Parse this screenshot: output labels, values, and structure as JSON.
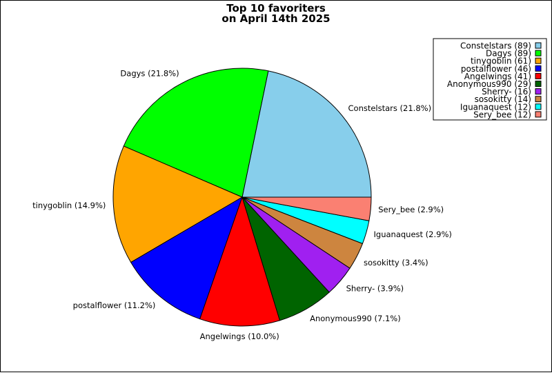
{
  "chart_data": {
    "type": "pie",
    "title": [
      "Top 10 favoriters",
      "on April 14th 2025"
    ],
    "slices": [
      {
        "name": "Constelstars",
        "count": 89,
        "percent": 21.8,
        "color": "#87ceeb",
        "label": "Constelstars (21.8%)",
        "legend": "Constelstars (89)"
      },
      {
        "name": "Dagys",
        "count": 89,
        "percent": 21.8,
        "color": "#00ff00",
        "label": "Dagys (21.8%)",
        "legend": "Dagys (89)"
      },
      {
        "name": "tinygoblin",
        "count": 61,
        "percent": 14.9,
        "color": "#ffa500",
        "label": "tinygoblin (14.9%)",
        "legend": "tinygoblin (61)"
      },
      {
        "name": "postalflower",
        "count": 46,
        "percent": 11.2,
        "color": "#0000ff",
        "label": "postalflower (11.2%)",
        "legend": "postalflower (46)"
      },
      {
        "name": "Angelwings",
        "count": 41,
        "percent": 10.0,
        "color": "#ff0000",
        "label": "Angelwings (10.0%)",
        "legend": "Angelwings (41)"
      },
      {
        "name": "Anonymous990",
        "count": 29,
        "percent": 7.1,
        "color": "#006400",
        "label": "Anonymous990 (7.1%)",
        "legend": "Anonymous990 (29)"
      },
      {
        "name": "Sherry-",
        "count": 16,
        "percent": 3.9,
        "color": "#a020f0",
        "label": "Sherry- (3.9%)",
        "legend": "Sherry- (16)"
      },
      {
        "name": "sosokitty",
        "count": 14,
        "percent": 3.4,
        "color": "#cd853f",
        "label": "sosokitty (3.4%)",
        "legend": "sosokitty (14)"
      },
      {
        "name": "Iguanaquest",
        "count": 12,
        "percent": 2.9,
        "color": "#00ffff",
        "label": "Iguanaquest (2.9%)",
        "legend": "Iguanaquest (12)"
      },
      {
        "name": "Sery_bee",
        "count": 12,
        "percent": 2.9,
        "color": "#fa8072",
        "label": "Sery_bee (2.9%)",
        "legend": "Sery_bee (12)"
      }
    ],
    "start_angle_deg": 0,
    "direction": "counterclockwise",
    "legend_position": "top-right"
  }
}
